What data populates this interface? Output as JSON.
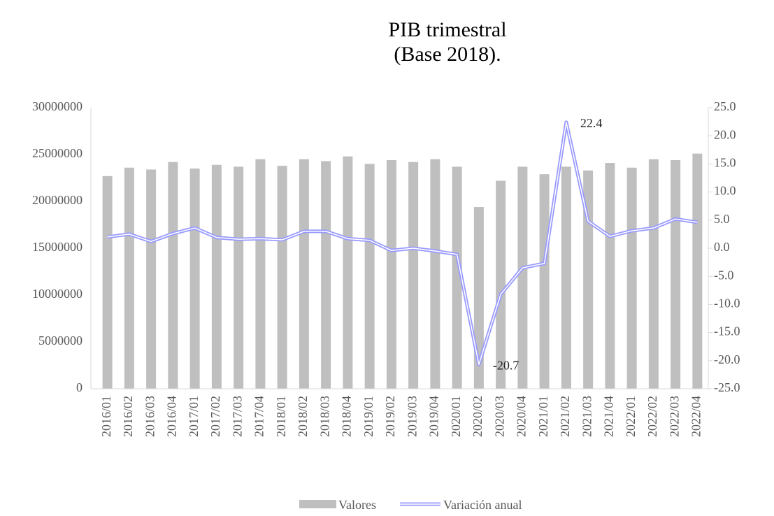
{
  "chart_data": {
    "type": "bar",
    "title": "PIB trimestral",
    "subtitle": "(Base 2018).",
    "categories": [
      "2016/01",
      "2016/02",
      "2016/03",
      "2016/04",
      "2017/01",
      "2017/02",
      "2017/03",
      "2017/04",
      "2018/01",
      "2018/02",
      "2018/03",
      "2018/04",
      "2019/01",
      "2019/02",
      "2019/03",
      "2019/04",
      "2020/01",
      "2020/02",
      "2020/03",
      "2020/04",
      "2021/01",
      "2021/02",
      "2021/03",
      "2021/04",
      "2022/01",
      "2022/02",
      "2022/03",
      "2022/04"
    ],
    "series": [
      {
        "name": "Valores",
        "type": "bar",
        "color": "#bfbfbf",
        "values": [
          22700000,
          23600000,
          23400000,
          24200000,
          23500000,
          23900000,
          23700000,
          24500000,
          23800000,
          24500000,
          24300000,
          24800000,
          24000000,
          24400000,
          24200000,
          24500000,
          23700000,
          19400000,
          22200000,
          23700000,
          22900000,
          23700000,
          23300000,
          24100000,
          23600000,
          24500000,
          24400000,
          25100000
        ]
      },
      {
        "name": "Variación anual",
        "type": "line",
        "axis": "y2",
        "color": "#9999ff",
        "values": [
          2.0,
          2.5,
          1.2,
          2.6,
          3.6,
          1.9,
          1.6,
          1.7,
          1.5,
          3.0,
          3.0,
          1.7,
          1.4,
          -0.4,
          0.0,
          -0.5,
          -1.1,
          -20.7,
          -8.2,
          -3.5,
          -2.7,
          22.4,
          4.8,
          2.1,
          3.1,
          3.6,
          5.2,
          4.6
        ],
        "value_labels": [
          null,
          null,
          null,
          null,
          null,
          null,
          null,
          null,
          null,
          null,
          null,
          null,
          null,
          null,
          null,
          null,
          null,
          "-20.7",
          null,
          null,
          null,
          "22.4",
          null,
          null,
          null,
          null,
          null,
          null
        ]
      }
    ],
    "ylim": [
      0,
      30000000
    ],
    "yticks": [
      0,
      5000000,
      10000000,
      15000000,
      20000000,
      25000000,
      30000000
    ],
    "y2lim": [
      -25,
      25
    ],
    "y2ticks": [
      {
        "value": -25,
        "label": "-25.0"
      },
      {
        "value": -20,
        "label": "-20.0"
      },
      {
        "value": -15,
        "label": "-15.0"
      },
      {
        "value": -10,
        "label": "-10.0"
      },
      {
        "value": -5,
        "label": "-5.0"
      },
      {
        "value": 0,
        "label": "0.0"
      },
      {
        "value": 5,
        "label": "5.0"
      },
      {
        "value": 10,
        "label": "10.0"
      },
      {
        "value": 15,
        "label": "15.0"
      },
      {
        "value": 20,
        "label": "20.0"
      },
      {
        "value": 25,
        "label": "25.0"
      }
    ],
    "grid": false,
    "legend": "bottom"
  }
}
